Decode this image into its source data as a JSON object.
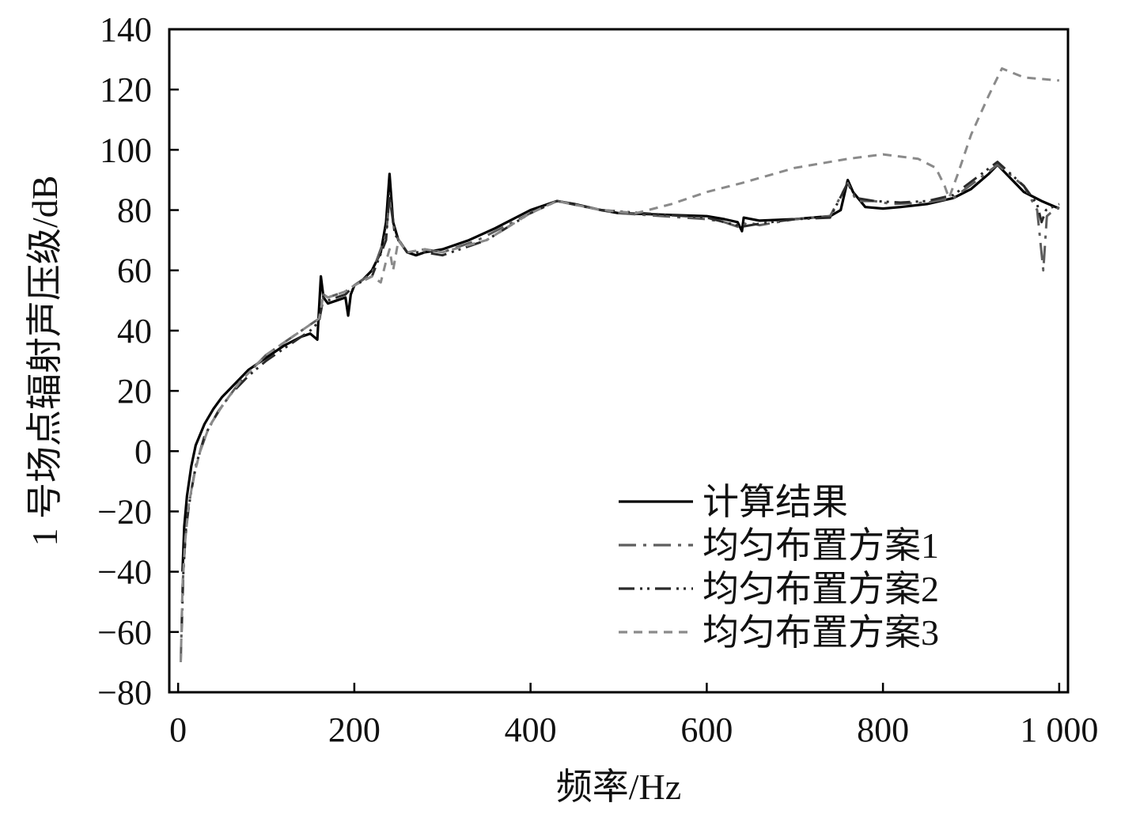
{
  "chart_data": {
    "type": "line",
    "title": "",
    "xlabel": "频率/Hz",
    "ylabel": "1 号场点辐射声压级/dB",
    "xlim": [
      -10,
      1010
    ],
    "ylim": [
      -80,
      140
    ],
    "xticks": [
      0,
      200,
      400,
      600,
      800,
      1000
    ],
    "xtick_labels": [
      "0",
      "200",
      "400",
      "600",
      "800",
      "1 000"
    ],
    "yticks": [
      -80,
      -60,
      -40,
      -20,
      0,
      20,
      40,
      60,
      80,
      100,
      120,
      140
    ],
    "ytick_labels": [
      "−80",
      "−60",
      "−40",
      "−20",
      "0",
      "20",
      "40",
      "60",
      "80",
      "100",
      "120",
      "140"
    ],
    "grid": false,
    "legend_position": "bottom-right",
    "series": [
      {
        "name": "计算结果",
        "color": "#000000",
        "style": "solid",
        "x": [
          5,
          7,
          10,
          15,
          20,
          30,
          40,
          50,
          60,
          80,
          100,
          120,
          140,
          150,
          158,
          162,
          165,
          170,
          180,
          190,
          193,
          196,
          200,
          210,
          220,
          230,
          236,
          240,
          244,
          250,
          260,
          270,
          280,
          300,
          330,
          360,
          400,
          430,
          450,
          480,
          500,
          550,
          600,
          620,
          635,
          640,
          642,
          660,
          700,
          740,
          752,
          760,
          766,
          780,
          800,
          820,
          850,
          880,
          900,
          920,
          930,
          940,
          960,
          980,
          1000
        ],
        "y": [
          -40,
          -25,
          -15,
          -5,
          2,
          9,
          14,
          18,
          21,
          27,
          31,
          35,
          38,
          39,
          37,
          58,
          51,
          49,
          50,
          51,
          45,
          52,
          55,
          57,
          60,
          66,
          76,
          92,
          76,
          70,
          66,
          65,
          66,
          67,
          70,
          74,
          80,
          83,
          82,
          80,
          79,
          78.5,
          78,
          77,
          76,
          73,
          77.5,
          76.5,
          77,
          78,
          80,
          90,
          86,
          81,
          80.5,
          81,
          82,
          84,
          87,
          92,
          95,
          92,
          86,
          83,
          80.5
        ]
      },
      {
        "name": "均匀布置方案1",
        "color": "#5e5e5e",
        "style": "dashdot",
        "x": [
          3,
          5,
          8,
          12,
          18,
          25,
          35,
          50,
          70,
          100,
          130,
          150,
          160,
          165,
          170,
          190,
          200,
          220,
          236,
          240,
          246,
          260,
          280,
          300,
          340,
          400,
          430,
          480,
          500,
          550,
          600,
          620,
          640,
          645,
          660,
          700,
          740,
          760,
          770,
          790,
          810,
          850,
          880,
          930,
          960,
          975,
          982,
          986,
          990,
          1000
        ],
        "y": [
          -70,
          -45,
          -30,
          -18,
          -8,
          0,
          8,
          15,
          23,
          32,
          38,
          42,
          44,
          52,
          51,
          53,
          55,
          59,
          72,
          84,
          72,
          66,
          67,
          66,
          70,
          79,
          83,
          80,
          79,
          78,
          77,
          76,
          74,
          76,
          75,
          77,
          78,
          89,
          83,
          83,
          82,
          82.5,
          84,
          95,
          88,
          80,
          60,
          78,
          79,
          81
        ]
      },
      {
        "name": "均匀布置方案2",
        "color": "#2b2b2b",
        "style": "dashdotdot",
        "x": [
          4,
          6,
          9,
          14,
          20,
          30,
          45,
          60,
          80,
          100,
          130,
          150,
          160,
          165,
          170,
          190,
          200,
          220,
          236,
          240,
          246,
          260,
          280,
          300,
          350,
          400,
          430,
          480,
          550,
          600,
          620,
          640,
          660,
          700,
          740,
          760,
          770,
          790,
          820,
          850,
          880,
          930,
          960,
          975,
          980,
          985,
          1000
        ],
        "y": [
          -60,
          -40,
          -25,
          -15,
          -5,
          5,
          13,
          19,
          25,
          30,
          36,
          40,
          43,
          51,
          50,
          52,
          55,
          58,
          70,
          86,
          72,
          66,
          66,
          65,
          70,
          79,
          83,
          80,
          78.5,
          77.5,
          76,
          74.5,
          75.5,
          77,
          77.5,
          89,
          84,
          83,
          82.5,
          83,
          85,
          96,
          88,
          82,
          76,
          80,
          82
        ]
      },
      {
        "name": "均匀布置方案3",
        "color": "#8a8a8a",
        "style": "dashed",
        "x": [
          3,
          5,
          8,
          12,
          18,
          25,
          35,
          50,
          70,
          100,
          130,
          150,
          160,
          165,
          170,
          190,
          200,
          220,
          230,
          236,
          240,
          244,
          250,
          260,
          280,
          300,
          350,
          400,
          430,
          480,
          520,
          560,
          600,
          640,
          700,
          760,
          800,
          840,
          860,
          870,
          875,
          885,
          900,
          920,
          935,
          960,
          1000
        ],
        "y": [
          -70,
          -45,
          -30,
          -18,
          -8,
          0,
          8,
          15,
          23,
          32,
          38,
          42,
          44,
          52,
          51,
          53,
          55,
          58,
          56,
          63,
          67,
          60,
          70,
          66,
          67,
          66,
          70,
          79,
          83,
          80,
          79,
          82,
          86,
          89,
          94,
          97,
          98.5,
          97,
          94,
          88,
          84,
          92,
          105,
          118,
          127,
          124,
          123
        ]
      }
    ]
  }
}
